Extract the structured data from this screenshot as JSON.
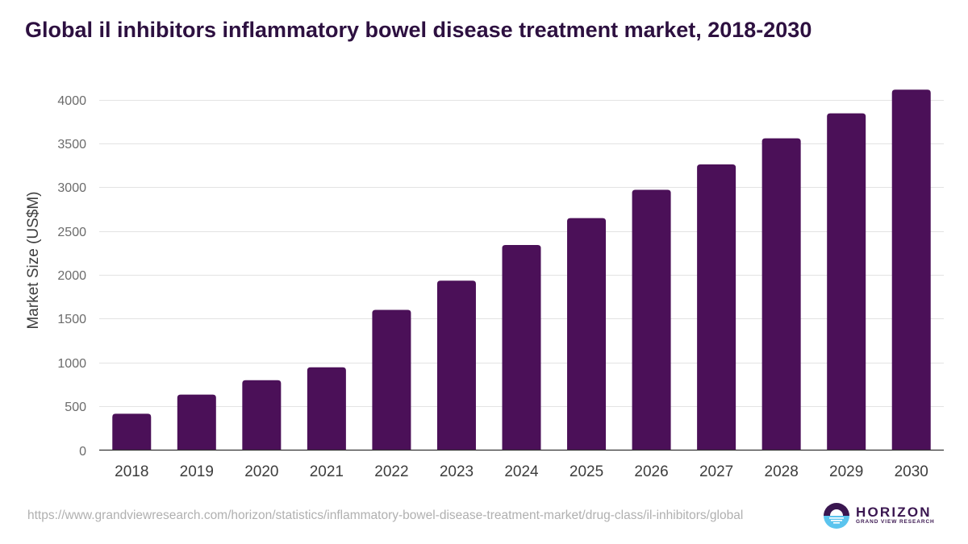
{
  "chart_data": {
    "type": "bar",
    "title": "Global il inhibitors inflammatory bowel disease treatment market, 2018-2030",
    "xlabel": "",
    "ylabel": "Market Size (US$M)",
    "categories": [
      "2018",
      "2019",
      "2020",
      "2021",
      "2022",
      "2023",
      "2024",
      "2025",
      "2026",
      "2027",
      "2028",
      "2029",
      "2030"
    ],
    "values": [
      415,
      633,
      798,
      945,
      1600,
      1933,
      2340,
      2647,
      2970,
      3260,
      3558,
      3842,
      4113
    ],
    "ylim": [
      0,
      4000
    ],
    "yticks": [
      0,
      500,
      1000,
      1500,
      2000,
      2500,
      3000,
      3500,
      4000
    ],
    "grid": true,
    "legend": "none",
    "bar_color": "#4b1058"
  },
  "footer": {
    "source_url": "https://www.grandviewresearch.com/horizon/statistics/inflammatory-bowel-disease-treatment-market/drug-class/il-inhibitors/global",
    "logo_name": "HORIZON",
    "logo_sub": "GRAND VIEW RESEARCH"
  },
  "colors": {
    "title": "#2d1040",
    "logo_dark": "#3a1650",
    "logo_light": "#5bc4ee"
  }
}
